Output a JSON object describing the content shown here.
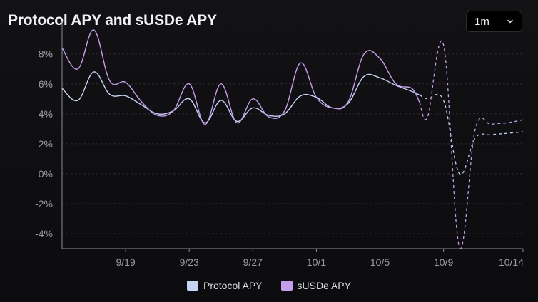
{
  "header": {
    "title": "Protocol APY and sUSDe APY",
    "range_value": "1m"
  },
  "colors": {
    "protocol": "#c4d4f6",
    "susde": "#c79cf0",
    "grid": "#2a2a30",
    "axis": "#8a8a92"
  },
  "chart_data": {
    "type": "line",
    "title": "Protocol APY and sUSDe APY",
    "xlabel": "",
    "ylabel": "",
    "x_ticks": [
      "9/19",
      "9/23",
      "9/27",
      "10/1",
      "10/5",
      "10/9",
      "10/14"
    ],
    "x_tick_days": [
      4,
      8,
      12,
      16,
      20,
      24,
      29
    ],
    "y_ticks": [
      "8%",
      "6%",
      "4%",
      "2%",
      "0%",
      "-2%",
      "-4%"
    ],
    "y_tick_values": [
      8,
      6,
      4,
      2,
      0,
      -2,
      -4
    ],
    "ylim": [
      -5,
      9.7
    ],
    "xlim": [
      0,
      29
    ],
    "grid": "horizontal dashed",
    "legend_position": "bottom-center",
    "x": [
      0,
      1,
      2,
      3,
      4,
      5,
      6,
      7,
      8,
      9,
      10,
      11,
      12,
      13,
      14,
      15,
      16,
      17,
      18,
      19,
      20,
      21,
      22,
      23,
      24,
      25,
      26,
      27,
      28,
      29
    ],
    "actual_until": 22.5,
    "series": [
      {
        "name": "Protocol APY",
        "values": [
          5.7,
          4.9,
          6.8,
          5.3,
          5.2,
          4.6,
          4.0,
          4.2,
          5.0,
          3.4,
          4.9,
          3.5,
          4.4,
          3.9,
          4.0,
          5.2,
          5.1,
          4.4,
          4.7,
          6.5,
          6.4,
          5.9,
          5.5,
          5.0,
          4.9,
          0.0,
          2.4,
          2.6,
          2.7,
          2.8
        ]
      },
      {
        "name": "sUSDe APY",
        "values": [
          8.4,
          7.0,
          9.6,
          6.2,
          6.1,
          4.8,
          3.9,
          4.2,
          6.0,
          3.3,
          6.0,
          3.4,
          5.0,
          3.8,
          4.2,
          7.4,
          5.1,
          4.4,
          4.8,
          8.0,
          7.7,
          6.0,
          5.7,
          3.8,
          8.6,
          -4.9,
          3.0,
          3.3,
          3.4,
          3.6
        ]
      }
    ]
  },
  "legend": {
    "protocol_label": "Protocol APY",
    "susde_label": "sUSDe APY"
  }
}
